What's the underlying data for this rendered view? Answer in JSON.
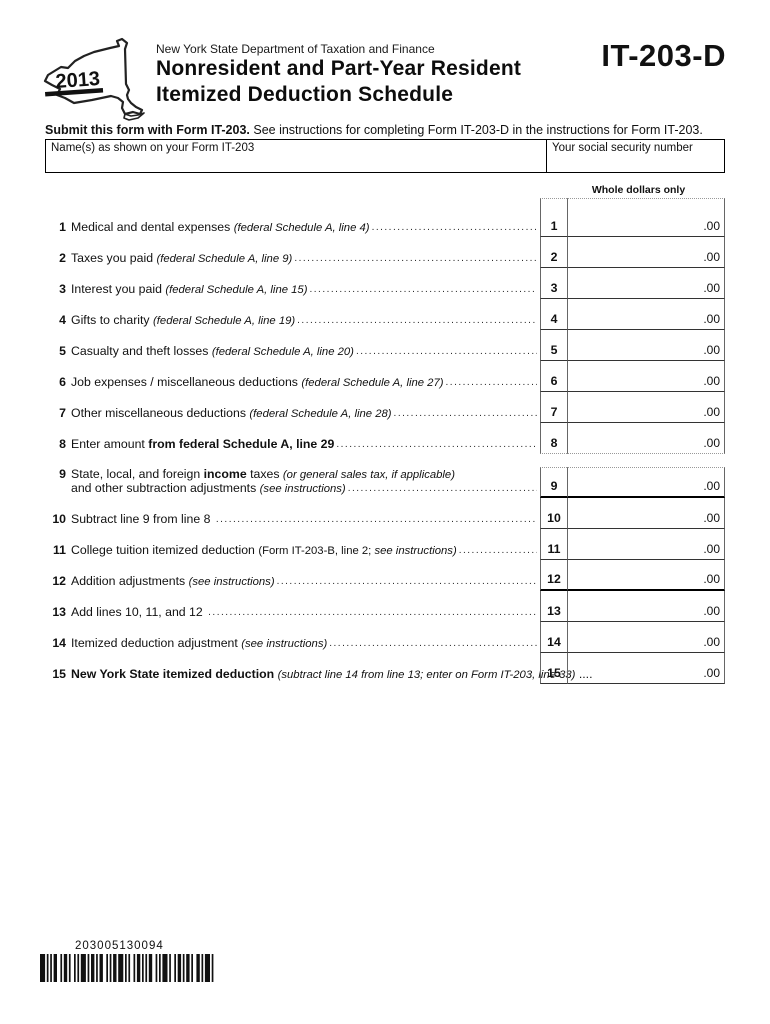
{
  "header": {
    "year": "2013",
    "agency": "New York State Department of Taxation and Finance",
    "title_line1": "Nonresident and Part-Year Resident",
    "title_line2": "Itemized Deduction Schedule",
    "form_number": "IT-203-D"
  },
  "instructions": {
    "bold": "Submit this form with Form IT-203.",
    "rest": " See instructions for completing Form IT-203-D in the instructions for Form IT-203."
  },
  "identity": {
    "name_label": "Name(s) as shown on your Form IT-203",
    "name_value": "",
    "ssn_label": "Your social security number",
    "ssn_value": ""
  },
  "table": {
    "column_note": "Whole dollars only",
    "amount_suffix": ".00",
    "groups": [
      [
        {
          "num": "1",
          "lines": [
            [
              {
                "t": "Medical and dental expenses ",
                "s": "n"
              },
              {
                "t": "(federal Schedule A, line 4)",
                "s": "i"
              }
            ]
          ],
          "value": ""
        },
        {
          "num": "2",
          "lines": [
            [
              {
                "t": "Taxes you paid ",
                "s": "n"
              },
              {
                "t": "(federal Schedule A, line 9)",
                "s": "i"
              }
            ]
          ],
          "value": ""
        },
        {
          "num": "3",
          "lines": [
            [
              {
                "t": "Interest you paid ",
                "s": "n"
              },
              {
                "t": "(federal Schedule A, line 15)",
                "s": "i"
              }
            ]
          ],
          "value": ""
        },
        {
          "num": "4",
          "lines": [
            [
              {
                "t": "Gifts to charity ",
                "s": "n"
              },
              {
                "t": "(federal Schedule A, line 19)",
                "s": "i"
              }
            ]
          ],
          "value": ""
        },
        {
          "num": "5",
          "lines": [
            [
              {
                "t": "Casualty and theft losses ",
                "s": "n"
              },
              {
                "t": "(federal Schedule A, line 20)",
                "s": "i"
              }
            ]
          ],
          "value": ""
        },
        {
          "num": "6",
          "lines": [
            [
              {
                "t": "Job expenses / miscellaneous deductions ",
                "s": "n"
              },
              {
                "t": "(federal Schedule A, line 27)",
                "s": "i"
              }
            ]
          ],
          "value": ""
        },
        {
          "num": "7",
          "lines": [
            [
              {
                "t": "Other miscellaneous deductions ",
                "s": "n"
              },
              {
                "t": "(federal Schedule A, line 28)",
                "s": "i"
              }
            ]
          ],
          "value": ""
        },
        {
          "num": "8",
          "lines": [
            [
              {
                "t": "Enter amount ",
                "s": "n"
              },
              {
                "t": "from federal Schedule A, line 29",
                "s": "b"
              }
            ]
          ],
          "value": ""
        }
      ],
      [
        {
          "num": "9",
          "lines": [
            [
              {
                "t": "State, local, and foreign ",
                "s": "n"
              },
              {
                "t": "income",
                "s": "b"
              },
              {
                "t": " taxes ",
                "s": "n"
              },
              {
                "t": "(or general sales tax, if applicable)",
                "s": "i"
              }
            ],
            [
              {
                "t": "and other subtraction adjustments ",
                "s": "n"
              },
              {
                "t": "(see instructions)",
                "s": "i"
              }
            ]
          ],
          "value": "",
          "thick": true
        },
        {
          "num": "10",
          "lines": [
            [
              {
                "t": "Subtract line 9 from line 8 ",
                "s": "n"
              }
            ]
          ],
          "value": ""
        },
        {
          "num": "11",
          "lines": [
            [
              {
                "t": "College tuition itemized deduction ",
                "s": "n"
              },
              {
                "t": "(Form IT-203-B, line 2; ",
                "s": "p"
              },
              {
                "t": "see instructions)",
                "s": "i"
              }
            ]
          ],
          "value": ""
        },
        {
          "num": "12",
          "lines": [
            [
              {
                "t": "Addition adjustments ",
                "s": "n"
              },
              {
                "t": "(see instructions)",
                "s": "i"
              }
            ]
          ],
          "value": "",
          "thick": true
        },
        {
          "num": "13",
          "lines": [
            [
              {
                "t": "Add lines 10, 11, and 12 ",
                "s": "n"
              }
            ]
          ],
          "value": ""
        },
        {
          "num": "14",
          "lines": [
            [
              {
                "t": "Itemized deduction adjustment ",
                "s": "n"
              },
              {
                "t": "(see instructions)",
                "s": "i"
              }
            ]
          ],
          "value": ""
        },
        {
          "num": "15",
          "lines": [
            [
              {
                "t": "New York State itemized deduction ",
                "s": "b"
              },
              {
                "t": "(subtract line 14 from line 13; enter on Form IT-203, line 33)",
                "s": "i"
              },
              {
                "t": " ....",
                "s": "n"
              }
            ]
          ],
          "value": ""
        }
      ]
    ]
  },
  "footer": {
    "barcode_number": "203005130094"
  }
}
